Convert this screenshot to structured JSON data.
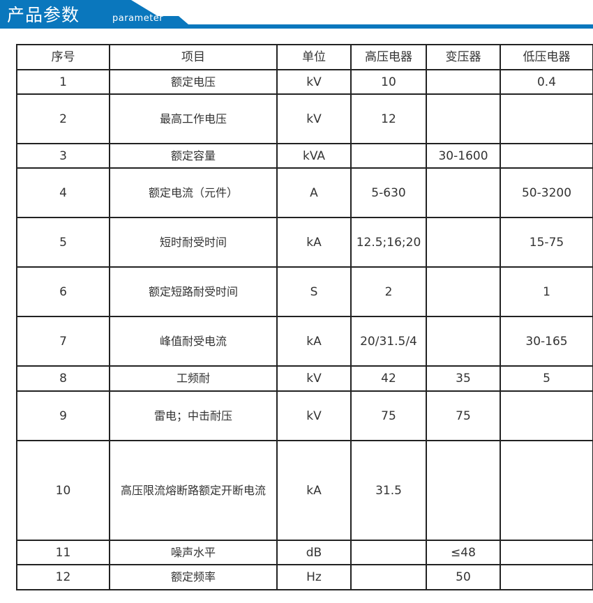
{
  "header": {
    "title": "产品参数",
    "subtitle": "parameter",
    "color": "#0a77bd"
  },
  "table": {
    "columns": [
      "序号",
      "项目",
      "单位",
      "高压电器",
      "变压器",
      "低压电器"
    ],
    "rows": [
      [
        "1",
        "额定电压",
        "kV",
        "10",
        "",
        "0.4"
      ],
      [
        "2",
        "最高工作电压",
        "kV",
        "12",
        "",
        ""
      ],
      [
        "3",
        "额定容量",
        "kVA",
        "",
        "30-1600",
        ""
      ],
      [
        "4",
        "额定电流（元件）",
        "A",
        "5-630",
        "",
        "50-3200"
      ],
      [
        "5",
        "短时耐受时间",
        "kA",
        "12.5;16;20",
        "",
        "15-75"
      ],
      [
        "6",
        "额定短路耐受时间",
        "S",
        "2",
        "",
        "1"
      ],
      [
        "7",
        "峰值耐受电流",
        "kA",
        "20/31.5/4",
        "",
        "30-165"
      ],
      [
        "8",
        "工频耐",
        "kV",
        "42",
        "35",
        "5"
      ],
      [
        "9",
        "雷电；中击耐压",
        "kV",
        "75",
        "75",
        ""
      ],
      [
        "10",
        "高压限流熔断路额定开断电流",
        "kA",
        "31.5",
        "",
        ""
      ],
      [
        "11",
        "噪声水平",
        "dB",
        "",
        "≤48",
        ""
      ],
      [
        "12",
        "额定频率",
        "Hz",
        "",
        "50",
        ""
      ]
    ]
  }
}
